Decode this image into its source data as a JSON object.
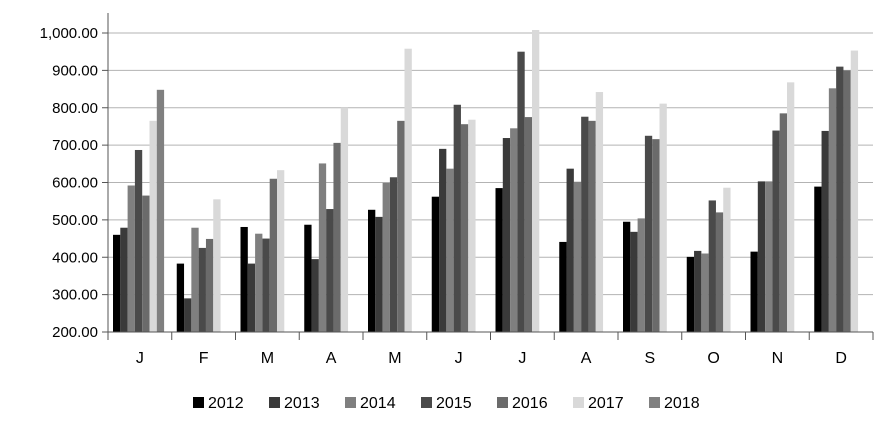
{
  "chart_data": {
    "type": "bar",
    "title": "",
    "xlabel": "",
    "ylabel": "",
    "ylim": [
      200,
      1000
    ],
    "yticks": [
      200,
      300,
      400,
      500,
      600,
      700,
      800,
      900,
      1000
    ],
    "ytick_labels": [
      "200.00",
      "300.00",
      "400.00",
      "500.00",
      "600.00",
      "700.00",
      "800.00",
      "900.00",
      "1,000.00"
    ],
    "categories": [
      "J",
      "F",
      "M",
      "A",
      "M",
      "J",
      "J",
      "A",
      "S",
      "O",
      "N",
      "D"
    ],
    "legend_position": "bottom",
    "grid": true,
    "series": [
      {
        "name": "2012",
        "color": "#000000",
        "values": [
          460,
          383,
          481,
          487,
          527,
          562,
          585,
          441,
          495,
          401,
          415,
          589
        ]
      },
      {
        "name": "2013",
        "color": "#3a3a3a",
        "values": [
          479,
          290,
          383,
          395,
          508,
          690,
          719,
          637,
          468,
          417,
          603,
          738
        ]
      },
      {
        "name": "2014",
        "color": "#7f7f7f",
        "values": [
          592,
          479,
          463,
          651,
          599,
          637,
          745,
          602,
          504,
          410,
          603,
          852
        ]
      },
      {
        "name": "2015",
        "color": "#4a4a4a",
        "values": [
          687,
          425,
          450,
          529,
          614,
          808,
          950,
          776,
          725,
          552,
          739,
          910
        ]
      },
      {
        "name": "2016",
        "color": "#6b6b6b",
        "values": [
          565,
          449,
          610,
          706,
          765,
          756,
          775,
          765,
          716,
          520,
          785,
          900
        ]
      },
      {
        "name": "2017",
        "color": "#d9d9d9",
        "values": [
          765,
          555,
          633,
          800,
          958,
          768,
          1008,
          842,
          811,
          586,
          868,
          953
        ]
      },
      {
        "name": "2018",
        "color": "#808080",
        "values": [
          848,
          null,
          null,
          null,
          null,
          null,
          null,
          null,
          null,
          null,
          null,
          null
        ]
      }
    ]
  }
}
